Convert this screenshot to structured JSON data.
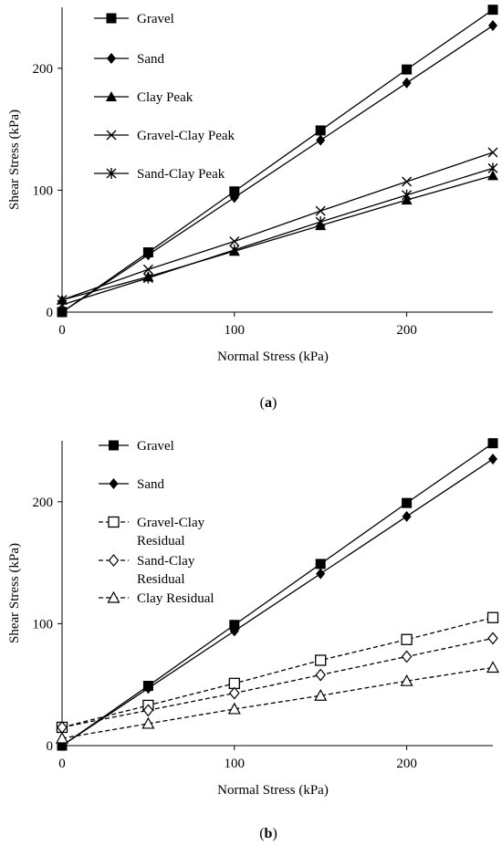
{
  "chart_data": [
    {
      "type": "line",
      "caption_letter": "a",
      "xlabel": "Normal Stress (kPa)",
      "ylabel": "Shear Stress (kPa)",
      "xlim": [
        0,
        250
      ],
      "ylim": [
        0,
        250
      ],
      "xticks": [
        "0",
        "100",
        "200"
      ],
      "yticks": [
        "0",
        "100",
        "200"
      ],
      "grid": false,
      "legend_placement": "top-left",
      "x": [
        0,
        50,
        100,
        150,
        200,
        250
      ],
      "series": [
        {
          "name": "Gravel",
          "marker": "filled-square",
          "dash": false,
          "values": [
            0,
            49,
            99,
            149,
            199,
            248
          ]
        },
        {
          "name": "Sand",
          "marker": "filled-diamond",
          "dash": false,
          "values": [
            0,
            47,
            94,
            141,
            188,
            235
          ]
        },
        {
          "name": "Clay Peak",
          "marker": "filled-triangle",
          "dash": false,
          "values": [
            10,
            29,
            50,
            71,
            92,
            112
          ]
        },
        {
          "name": "Gravel-Clay Peak",
          "marker": "x",
          "dash": false,
          "values": [
            10,
            35,
            58,
            83,
            107,
            131
          ]
        },
        {
          "name": "Sand-Clay Peak",
          "marker": "asterisk",
          "dash": false,
          "values": [
            6,
            28,
            51,
            74,
            96,
            118
          ]
        }
      ]
    },
    {
      "type": "line",
      "caption_letter": "b",
      "xlabel": "Normal Stress (kPa)",
      "ylabel": "Shear Stress (kPa)",
      "xlim": [
        0,
        250
      ],
      "ylim": [
        0,
        250
      ],
      "xticks": [
        "0",
        "100",
        "200"
      ],
      "yticks": [
        "0",
        "100",
        "200"
      ],
      "grid": false,
      "legend_placement": "top-left",
      "x": [
        0,
        50,
        100,
        150,
        200,
        250
      ],
      "series": [
        {
          "name": "Gravel",
          "marker": "filled-square",
          "dash": false,
          "values": [
            0,
            49,
            99,
            149,
            199,
            248
          ]
        },
        {
          "name": "Sand",
          "marker": "filled-diamond",
          "dash": false,
          "values": [
            0,
            47,
            94,
            141,
            188,
            235
          ]
        },
        {
          "name": "Gravel-Clay Residual",
          "name_lines": [
            "Gravel-Clay",
            "Residual"
          ],
          "marker": "open-square",
          "dash": true,
          "values": [
            15,
            33,
            51,
            70,
            87,
            105
          ]
        },
        {
          "name": "Sand-Clay Residual",
          "name_lines": [
            "Sand-Clay",
            "Residual"
          ],
          "marker": "open-diamond",
          "dash": true,
          "values": [
            15,
            29,
            43,
            58,
            73,
            88
          ]
        },
        {
          "name": "Clay Residual",
          "marker": "open-triangle",
          "dash": true,
          "values": [
            6,
            18,
            30,
            41,
            53,
            64
          ]
        }
      ]
    }
  ]
}
